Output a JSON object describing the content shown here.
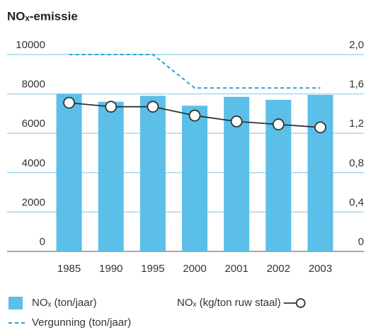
{
  "chart_data": {
    "type": "bar",
    "title": "NOₓ-emissie",
    "categories": [
      "1985",
      "1990",
      "1995",
      "2000",
      "2001",
      "2002",
      "2003"
    ],
    "series": [
      {
        "name": "NOₓ (ton/jaar)",
        "type": "bar",
        "color": "#5bbfe8",
        "values": [
          8000,
          7600,
          7900,
          7400,
          7850,
          7700,
          7950
        ]
      },
      {
        "name": "NOₓ (kg/ton ruw staal)",
        "type": "line",
        "axis": "y2",
        "color": "#333333",
        "values": [
          1.51,
          1.47,
          1.47,
          1.38,
          1.32,
          1.29,
          1.26
        ]
      },
      {
        "name": "Vergunning (ton/jaar)",
        "type": "line",
        "style": "dashed",
        "color": "#2a9fd6",
        "values": [
          10000,
          10000,
          10000,
          8300,
          8300,
          8300,
          8300
        ]
      }
    ],
    "ylim": [
      0,
      10000
    ],
    "yticks": [
      0,
      2000,
      4000,
      6000,
      8000,
      10000
    ],
    "y2lim": [
      0,
      2
    ],
    "y2ticks": [
      0,
      {
        "value": 0.4,
        "label": "0,4"
      },
      {
        "value": 0.8,
        "label": "0,8"
      },
      {
        "value": 1.2,
        "label": "1,2"
      },
      {
        "value": 1.6,
        "label": "1,6"
      },
      {
        "value": 2,
        "label": "2,0"
      }
    ],
    "grid": true
  }
}
